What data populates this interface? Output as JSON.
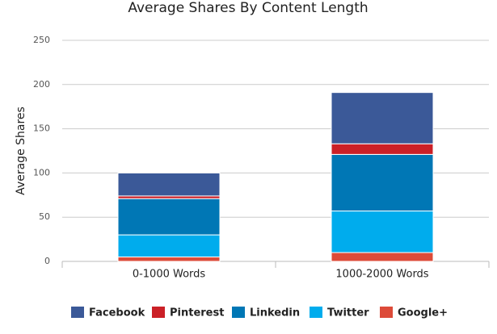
{
  "chart_data": {
    "type": "stacked-bar",
    "title": "Average Shares By Content Length",
    "y_label": "Average Shares",
    "categories": [
      "0-1000 Words",
      "1000-2000 Words"
    ],
    "series": [
      {
        "name": "Facebook",
        "color": "#3b5998",
        "values": [
          26,
          58
        ]
      },
      {
        "name": "Pinterest",
        "color": "#cb2027",
        "values": [
          3,
          12
        ]
      },
      {
        "name": "Linkedin",
        "color": "#0077b5",
        "values": [
          41,
          64
        ]
      },
      {
        "name": "Twitter",
        "color": "#00aced",
        "values": [
          25,
          47
        ]
      },
      {
        "name": "Google+",
        "color": "#dd4b39",
        "values": [
          5,
          10
        ]
      }
    ],
    "ylim": [
      0,
      250
    ],
    "yticks": [
      0,
      50,
      100,
      150,
      200,
      250
    ],
    "grid": true,
    "legend": "bottom"
  }
}
